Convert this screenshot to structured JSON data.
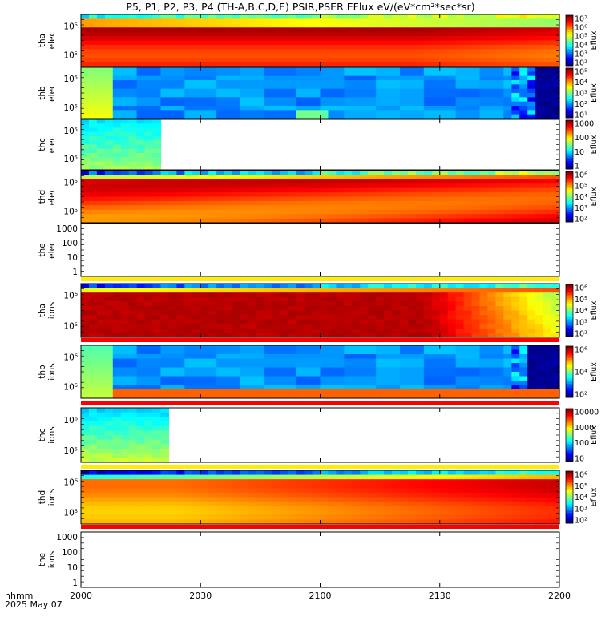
{
  "chart_data": {
    "type": "heatmap",
    "title": "P5, P1, P2, P3, P4 (TH-A,B,C,D,E) PSIR,PSER EFlux eV/(eV*cm²*sec*sr)",
    "x_ticks": [
      "2000",
      "2030",
      "2100",
      "2130",
      "2200"
    ],
    "x_range": [
      "20:00",
      "22:00"
    ],
    "xlabel": "hhmm",
    "date_label": "2025 May 07",
    "panels": [
      {
        "key": "tha_elec",
        "label": [
          "tha",
          "elec"
        ],
        "y_ticks": [
          "10⁵",
          "10⁵"
        ],
        "colorbar_ticks": [
          "10⁷",
          "10⁶",
          "10⁵",
          "10⁴",
          "10³",
          "10²"
        ],
        "colorbar_label": "Eflux",
        "shape": "tha_e"
      },
      {
        "key": "thb_elec",
        "label": [
          "thb",
          "elec"
        ],
        "y_ticks": [
          "10⁵",
          "10⁵"
        ],
        "colorbar_ticks": [
          "10⁵",
          "10⁴",
          "10³",
          "10²",
          "10¹"
        ],
        "colorbar_label": "Eflux",
        "shape": "thb_e"
      },
      {
        "key": "thc_elec",
        "label": [
          "thc",
          "elec"
        ],
        "y_ticks": [
          "10⁵",
          "10⁵"
        ],
        "colorbar_ticks": [
          "1000",
          "100",
          "10",
          "1"
        ],
        "colorbar_label": "Eflux",
        "shape": "thc_e"
      },
      {
        "key": "thd_elec",
        "label": [
          "thd",
          "elec"
        ],
        "y_ticks": [
          "10⁵",
          "10⁵"
        ],
        "colorbar_ticks": [
          "10⁶",
          "10⁵",
          "10⁴",
          "10³",
          "10²"
        ],
        "colorbar_label": "Eflux",
        "shape": "thd_e"
      },
      {
        "key": "the_elec",
        "label": [
          "the",
          "elec"
        ],
        "y_ticks": [
          "1000",
          "100",
          "10",
          "1"
        ],
        "colorbar_ticks": [],
        "colorbar_label": "",
        "shape": "empty"
      },
      {
        "key": "tha_ions",
        "label": [
          "tha",
          "ions"
        ],
        "y_ticks": [
          "10⁶",
          "10⁵"
        ],
        "colorbar_ticks": [
          "10⁶",
          "10⁵",
          "10⁴",
          "10³",
          "10²"
        ],
        "colorbar_label": "Eflux",
        "shape": "tha_i"
      },
      {
        "key": "thb_ions",
        "label": [
          "thb",
          "ions"
        ],
        "y_ticks": [
          "10⁶",
          "10⁵"
        ],
        "colorbar_ticks": [
          "10⁶",
          "10⁴",
          "10²"
        ],
        "colorbar_label": "Eflux",
        "shape": "thb_i"
      },
      {
        "key": "thc_ions",
        "label": [
          "thc",
          "ions"
        ],
        "y_ticks": [
          "10⁶",
          "10⁵"
        ],
        "colorbar_ticks": [
          "10000",
          "1000",
          "100",
          "10"
        ],
        "colorbar_label": "Eflux",
        "shape": "thc_i"
      },
      {
        "key": "thd_ions",
        "label": [
          "thd",
          "ions"
        ],
        "y_ticks": [
          "10⁶",
          "10⁵"
        ],
        "colorbar_ticks": [
          "10⁶",
          "10⁵",
          "10⁴",
          "10³",
          "10²"
        ],
        "colorbar_label": "Eflux",
        "shape": "thd_i"
      },
      {
        "key": "the_ions",
        "label": [
          "the",
          "ions"
        ],
        "y_ticks": [
          "1000",
          "100",
          "10",
          "1"
        ],
        "colorbar_ticks": [],
        "colorbar_label": "",
        "shape": "empty"
      }
    ],
    "separator_colors": [
      "#ffee00",
      "#ff0000",
      "#ff0000",
      "#ffee00",
      "#ff0000"
    ]
  }
}
